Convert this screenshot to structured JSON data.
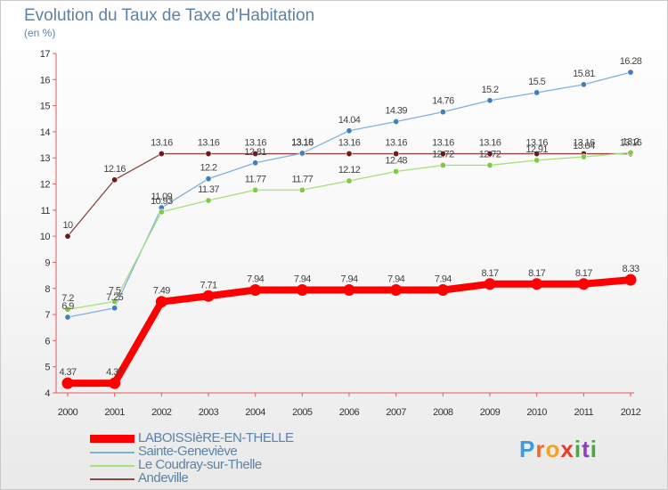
{
  "chart_data": {
    "type": "line",
    "title": "Evolution du Taux de Taxe d'Habitation",
    "unit_label": "(en %)",
    "x": [
      "2000",
      "2001",
      "2002",
      "2003",
      "2004",
      "2005",
      "2006",
      "2007",
      "2008",
      "2009",
      "2010",
      "2011",
      "2012"
    ],
    "ylim": [
      4,
      17
    ],
    "yticks": [
      "4",
      "5",
      "6",
      "7",
      "8",
      "9",
      "10",
      "11",
      "12",
      "13",
      "14",
      "15",
      "16",
      "17"
    ],
    "grid": false,
    "legend_position": "bottom-left",
    "series": [
      {
        "name": "LABOISSIèRE-EN-THELLE",
        "color": "#ff0000",
        "values": [
          4.37,
          4.37,
          7.49,
          7.71,
          7.94,
          7.94,
          7.94,
          7.94,
          7.94,
          8.17,
          8.17,
          8.17,
          8.33
        ],
        "labels": [
          "4.37",
          "4.37",
          "7.49",
          "7.71",
          "7.94",
          "7.94",
          "7.94",
          "7.94",
          "7.94",
          "8.17",
          "8.17",
          "8.17",
          "8.33"
        ]
      },
      {
        "name": "Sainte-Geneviève",
        "color": "#7fb0e0",
        "marker_color": "#3f7fc0",
        "values": [
          6.9,
          7.25,
          11.09,
          12.2,
          12.81,
          13.18,
          14.04,
          14.39,
          14.76,
          15.2,
          15.5,
          15.81,
          16.28
        ],
        "labels": [
          "6.9",
          "7.25",
          "11.09",
          "12.2",
          "12.81",
          "13.18",
          "14.04",
          "14.39",
          "14.76",
          "15.2",
          "15.5",
          "15.81",
          "16.28"
        ]
      },
      {
        "name": "Le Coudray-sur-Thelle",
        "color": "#a6e07a",
        "marker_color": "#7ccc3c",
        "values": [
          7.2,
          7.5,
          10.93,
          11.37,
          11.77,
          11.77,
          12.12,
          12.48,
          12.72,
          12.72,
          12.91,
          13.04,
          13.2
        ],
        "labels": [
          "7.2",
          "7.5",
          "10.93",
          "11.37",
          "11.77",
          "11.77",
          "12.12",
          "12.48",
          "12.72",
          "12.72",
          "12.91",
          "13.04",
          "13.2"
        ]
      },
      {
        "name": "Andeville",
        "color": "#8a4444",
        "marker_color": "#6b1a1a",
        "values": [
          10,
          12.16,
          13.16,
          13.16,
          13.16,
          13.16,
          13.16,
          13.16,
          13.16,
          13.16,
          13.16,
          13.16,
          13.16
        ],
        "labels": [
          "10",
          "12.16",
          "13.16",
          "13.16",
          "13.16",
          "13.16",
          "13.16",
          "13.16",
          "13.16",
          "13.16",
          "13.16",
          "13.16",
          "13.16"
        ]
      }
    ]
  },
  "logo": {
    "letters": [
      "P",
      "r",
      "o",
      "x",
      "i",
      "t",
      "i"
    ]
  }
}
